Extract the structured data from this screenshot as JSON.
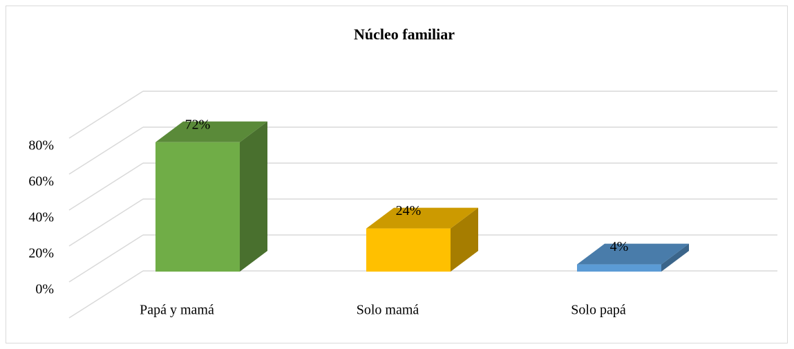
{
  "chart_data": {
    "type": "bar3d",
    "title": "Núcleo familiar",
    "categories": [
      "Papá y mamá",
      "Solo mamá",
      "Solo papá"
    ],
    "values": [
      72,
      24,
      4
    ],
    "value_labels": [
      "72%",
      "24%",
      "4%"
    ],
    "colors": [
      "#70ad47",
      "#ffc000",
      "#5b9bd5"
    ],
    "ylim": [
      0,
      100
    ],
    "yticks": [
      {
        "value": 0,
        "label": "0%"
      },
      {
        "value": 20,
        "label": "20%"
      },
      {
        "value": 40,
        "label": "40%"
      },
      {
        "value": 60,
        "label": "60%"
      },
      {
        "value": 80,
        "label": "80%"
      }
    ],
    "grid": true
  }
}
